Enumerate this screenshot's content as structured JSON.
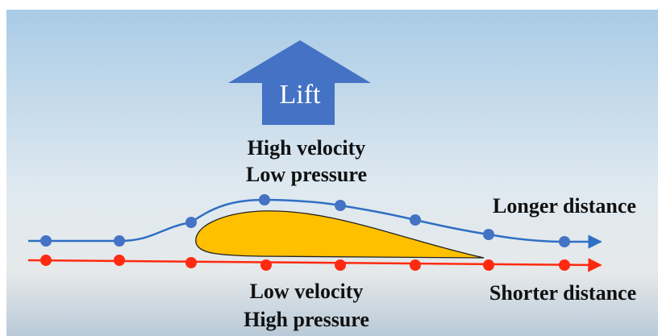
{
  "lift": {
    "label": "Lift"
  },
  "upper": {
    "lines": [
      "High velocity",
      "Low pressure"
    ],
    "path_label": "Longer distance"
  },
  "lower": {
    "lines": [
      "Low velocity",
      "High pressure"
    ],
    "path_label": "Shorter distance"
  }
}
